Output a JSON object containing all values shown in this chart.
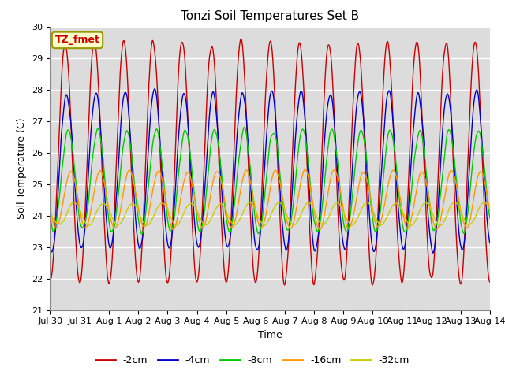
{
  "title": "Tonzi Soil Temperatures Set B",
  "xlabel": "Time",
  "ylabel": "Soil Temperature (C)",
  "ylim": [
    21.0,
    30.0
  ],
  "yticks": [
    21.0,
    22.0,
    23.0,
    24.0,
    25.0,
    26.0,
    27.0,
    28.0,
    29.0,
    30.0
  ],
  "xtick_labels": [
    "Jul 30",
    "Jul 31",
    "Aug 1",
    "Aug 2",
    "Aug 3",
    "Aug 4",
    "Aug 5",
    "Aug 6",
    "Aug 7",
    "Aug 8",
    "Aug 9",
    "Aug 10",
    "Aug 11",
    "Aug 12",
    "Aug 13",
    "Aug 14"
  ],
  "series_colors": [
    "#cc0000",
    "#0000cc",
    "#00cc00",
    "#ff9900",
    "#cccc00"
  ],
  "series_labels": [
    "-2cm",
    "-4cm",
    "-8cm",
    "-16cm",
    "-32cm"
  ],
  "annotation_text": "TZ_fmet",
  "annotation_bbox_facecolor": "#ffffcc",
  "annotation_bbox_edgecolor": "#aaaa00",
  "bg_color": "#dcdcdc",
  "fig_color": "#ffffff",
  "title_fontsize": 11,
  "axis_fontsize": 9,
  "tick_fontsize": 8,
  "legend_fontsize": 9,
  "n_days": 15,
  "points_per_day": 48
}
